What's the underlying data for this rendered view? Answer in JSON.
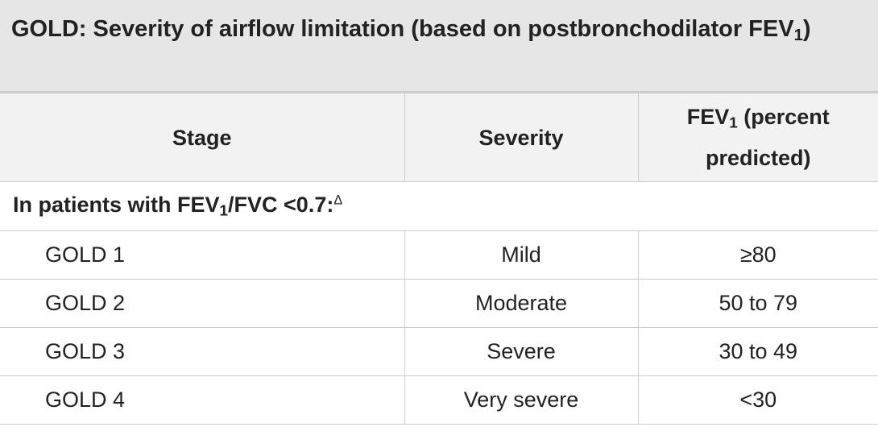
{
  "header": {
    "title": [
      "GOLD: Severity of airflow limitation (based on postbronchodilator FEV",
      "1",
      ")"
    ]
  },
  "table": {
    "columns": [
      [
        "Stage"
      ],
      [
        "Severity"
      ],
      [
        "FEV",
        "1",
        " (percent predicted)"
      ]
    ],
    "section": [
      "In patients with FEV",
      "1",
      "/FVC <0.7:",
      "Δ"
    ],
    "rows": [
      [
        "GOLD 1",
        "Mild",
        "≥80"
      ],
      [
        "GOLD 2",
        "Moderate",
        "50 to 79"
      ],
      [
        "GOLD 3",
        "Severe",
        "30 to 49"
      ],
      [
        "GOLD 4",
        "Very severe",
        "<30"
      ]
    ]
  }
}
